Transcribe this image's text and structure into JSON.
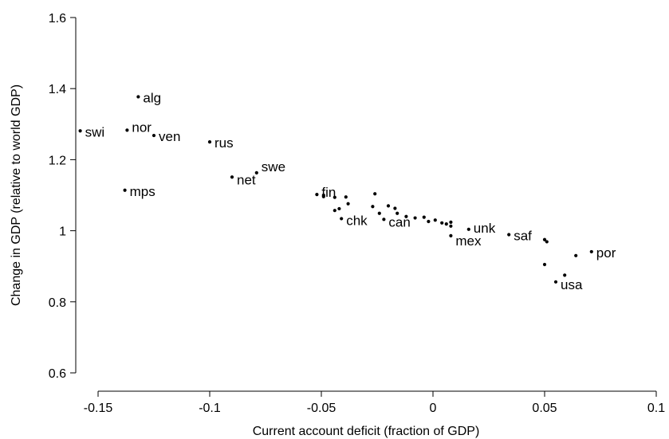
{
  "chart_data": {
    "type": "scatter",
    "title": "",
    "xlabel": "Current account deficit (fraction of GDP)",
    "ylabel": "Change in GDP (relative to world GDP)",
    "xlim": [
      -0.16,
      0.1
    ],
    "ylim": [
      0.6,
      1.6
    ],
    "x_ticks": [
      -0.15,
      -0.1,
      -0.05,
      0,
      0.05,
      0.1
    ],
    "x_tick_labels": [
      "-0.15",
      "-0.1",
      "-0.05",
      "0",
      "0.05",
      "0.1"
    ],
    "y_ticks": [
      0.6,
      0.8,
      1.0,
      1.2,
      1.4,
      1.6
    ],
    "y_tick_labels": [
      "0.6",
      "0.8",
      "1",
      "1.2",
      "1.4",
      "1.6"
    ],
    "grid": false,
    "points": [
      {
        "x": -0.132,
        "y": 1.377,
        "label": "alg"
      },
      {
        "x": -0.158,
        "y": 1.281,
        "label": "swi"
      },
      {
        "x": -0.137,
        "y": 1.283,
        "label": "nor"
      },
      {
        "x": -0.125,
        "y": 1.268,
        "label": "ven"
      },
      {
        "x": -0.1,
        "y": 1.25,
        "label": "rus"
      },
      {
        "x": -0.138,
        "y": 1.114,
        "label": "mps"
      },
      {
        "x": -0.09,
        "y": 1.151,
        "label": "net"
      },
      {
        "x": -0.079,
        "y": 1.163,
        "label": "swe"
      },
      {
        "x": -0.052,
        "y": 1.102,
        "label": "fin"
      },
      {
        "x": -0.041,
        "y": 1.034,
        "label": "chk"
      },
      {
        "x": -0.022,
        "y": 1.032,
        "label": "can"
      },
      {
        "x": 0.008,
        "y": 0.986,
        "label": "mex"
      },
      {
        "x": 0.016,
        "y": 1.004,
        "label": "unk"
      },
      {
        "x": 0.034,
        "y": 0.989,
        "label": "saf"
      },
      {
        "x": 0.071,
        "y": 0.941,
        "label": "por"
      },
      {
        "x": 0.055,
        "y": 0.856,
        "label": "usa"
      },
      {
        "x": -0.049,
        "y": 1.1,
        "label": ""
      },
      {
        "x": -0.049,
        "y": 1.096,
        "label": ""
      },
      {
        "x": -0.044,
        "y": 1.094,
        "label": ""
      },
      {
        "x": -0.039,
        "y": 1.095,
        "label": ""
      },
      {
        "x": -0.038,
        "y": 1.076,
        "label": ""
      },
      {
        "x": -0.044,
        "y": 1.057,
        "label": ""
      },
      {
        "x": -0.042,
        "y": 1.062,
        "label": ""
      },
      {
        "x": -0.026,
        "y": 1.104,
        "label": ""
      },
      {
        "x": -0.027,
        "y": 1.068,
        "label": ""
      },
      {
        "x": -0.024,
        "y": 1.049,
        "label": ""
      },
      {
        "x": -0.02,
        "y": 1.07,
        "label": ""
      },
      {
        "x": -0.017,
        "y": 1.063,
        "label": ""
      },
      {
        "x": -0.016,
        "y": 1.049,
        "label": ""
      },
      {
        "x": -0.012,
        "y": 1.04,
        "label": ""
      },
      {
        "x": -0.008,
        "y": 1.036,
        "label": ""
      },
      {
        "x": -0.004,
        "y": 1.038,
        "label": ""
      },
      {
        "x": -0.002,
        "y": 1.026,
        "label": ""
      },
      {
        "x": 0.001,
        "y": 1.03,
        "label": ""
      },
      {
        "x": 0.004,
        "y": 1.022,
        "label": ""
      },
      {
        "x": 0.006,
        "y": 1.019,
        "label": ""
      },
      {
        "x": 0.008,
        "y": 1.024,
        "label": ""
      },
      {
        "x": 0.008,
        "y": 1.013,
        "label": ""
      },
      {
        "x": 0.05,
        "y": 0.975,
        "label": ""
      },
      {
        "x": 0.051,
        "y": 0.969,
        "label": ""
      },
      {
        "x": 0.05,
        "y": 0.905,
        "label": ""
      },
      {
        "x": 0.064,
        "y": 0.93,
        "label": ""
      },
      {
        "x": 0.059,
        "y": 0.875,
        "label": ""
      }
    ]
  }
}
